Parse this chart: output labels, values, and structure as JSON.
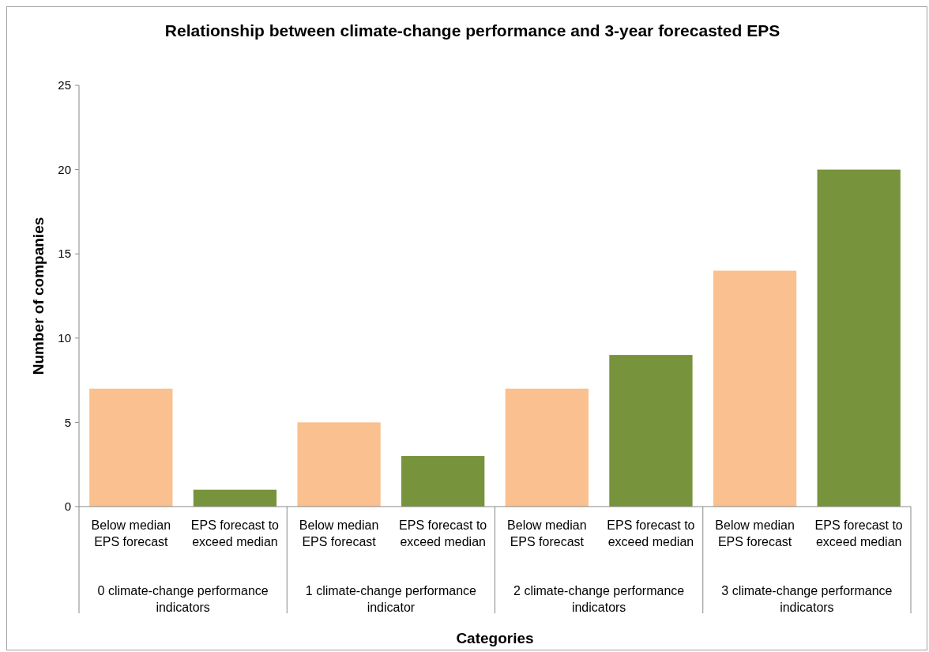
{
  "chart_data": {
    "type": "bar",
    "title": "Relationship between climate-change performance and 3-year forecasted EPS",
    "xlabel": "Categories",
    "ylabel": "Number of companies",
    "categories": [
      "0 climate-change performance indicators",
      "1 climate-change performance indicator",
      "2 climate-change performance indicators",
      "3 climate-change performance indicators"
    ],
    "series": [
      {
        "name": "Below median EPS forecast",
        "color": "#fac090",
        "values": [
          7,
          5,
          7,
          14
        ]
      },
      {
        "name": "EPS forecast to exceed median",
        "color": "#77933c",
        "values": [
          1,
          3,
          9,
          20
        ]
      }
    ],
    "ylim": [
      0,
      25
    ],
    "yticks": [
      0,
      5,
      10,
      15,
      20,
      25
    ],
    "grid": false,
    "legend": false
  }
}
